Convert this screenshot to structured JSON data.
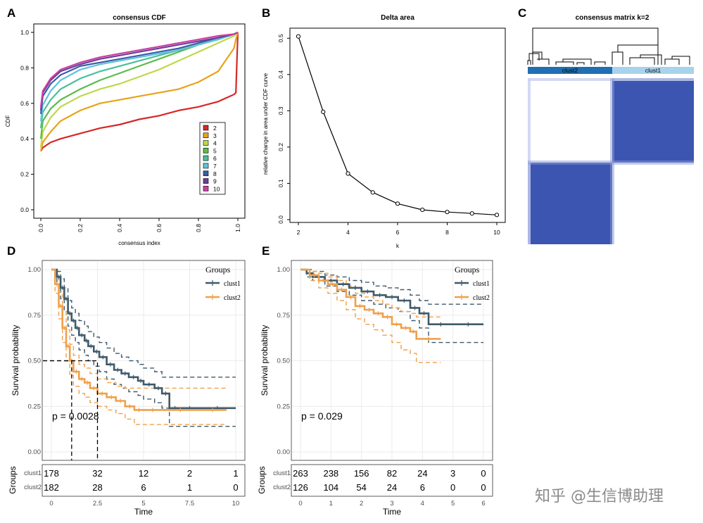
{
  "colors": {
    "cdf": [
      "#d62728",
      "#e8a317",
      "#bcd94a",
      "#5dbb4c",
      "#4bbf9b",
      "#5fc3d9",
      "#3b5ba8",
      "#6a3e9a",
      "#cc3fa0"
    ],
    "clust1": "#3f5a6a",
    "clust2": "#f0a04b",
    "heat": "#3b55b0"
  },
  "watermark": "知乎 @生信博助理",
  "chart_data": [
    {
      "id": "A",
      "panel_label": "A",
      "type": "line",
      "title": "consensus CDF",
      "xlabel": "consensus index",
      "ylabel": "CDF",
      "xlim": [
        0,
        1
      ],
      "ylim": [
        0,
        1
      ],
      "xticks": [
        "0.0",
        "0.2",
        "0.4",
        "0.6",
        "0.8",
        "1.0"
      ],
      "yticks": [
        "0.0",
        "0.2",
        "0.4",
        "0.6",
        "0.8",
        "1.0"
      ],
      "legend_position": "bottom-right",
      "x": [
        0,
        0.01,
        0.05,
        0.1,
        0.2,
        0.3,
        0.4,
        0.5,
        0.6,
        0.7,
        0.8,
        0.9,
        0.98,
        0.99,
        1.0
      ],
      "series": [
        {
          "name": "2",
          "values": [
            0.33,
            0.35,
            0.38,
            0.4,
            0.43,
            0.46,
            0.48,
            0.51,
            0.53,
            0.56,
            0.58,
            0.61,
            0.65,
            0.66,
            1.0
          ]
        },
        {
          "name": "3",
          "values": [
            0.33,
            0.38,
            0.44,
            0.5,
            0.56,
            0.6,
            0.62,
            0.64,
            0.66,
            0.68,
            0.72,
            0.78,
            0.91,
            0.96,
            1.0
          ]
        },
        {
          "name": "4",
          "values": [
            0.35,
            0.44,
            0.52,
            0.58,
            0.64,
            0.68,
            0.71,
            0.75,
            0.79,
            0.84,
            0.89,
            0.94,
            0.98,
            0.99,
            1.0
          ]
        },
        {
          "name": "5",
          "values": [
            0.4,
            0.5,
            0.57,
            0.62,
            0.68,
            0.73,
            0.77,
            0.81,
            0.85,
            0.89,
            0.93,
            0.96,
            0.99,
            0.995,
            1.0
          ]
        },
        {
          "name": "6",
          "values": [
            0.46,
            0.55,
            0.62,
            0.68,
            0.74,
            0.78,
            0.81,
            0.84,
            0.87,
            0.9,
            0.93,
            0.96,
            0.99,
            0.995,
            1.0
          ]
        },
        {
          "name": "7",
          "values": [
            0.5,
            0.59,
            0.67,
            0.73,
            0.79,
            0.82,
            0.84,
            0.86,
            0.88,
            0.9,
            0.93,
            0.96,
            0.99,
            0.995,
            1.0
          ]
        },
        {
          "name": "8",
          "values": [
            0.54,
            0.64,
            0.71,
            0.76,
            0.81,
            0.83,
            0.85,
            0.87,
            0.89,
            0.91,
            0.94,
            0.97,
            0.99,
            0.995,
            1.0
          ]
        },
        {
          "name": "9",
          "values": [
            0.56,
            0.66,
            0.73,
            0.78,
            0.82,
            0.85,
            0.87,
            0.89,
            0.91,
            0.93,
            0.95,
            0.97,
            0.99,
            0.995,
            1.0
          ]
        },
        {
          "name": "10",
          "values": [
            0.58,
            0.67,
            0.74,
            0.79,
            0.83,
            0.86,
            0.88,
            0.9,
            0.92,
            0.94,
            0.96,
            0.98,
            0.99,
            0.995,
            1.0
          ]
        }
      ]
    },
    {
      "id": "B",
      "panel_label": "B",
      "type": "line",
      "title": "Delta area",
      "xlabel": "k",
      "ylabel": "relative change in area under CDF curve",
      "xlim": [
        2,
        10
      ],
      "ylim": [
        0,
        0.52
      ],
      "xticks": [
        "2",
        "4",
        "6",
        "8",
        "10"
      ],
      "yticks": [
        "0.0",
        "0.1",
        "0.2",
        "0.3",
        "0.4",
        "0.5"
      ],
      "x": [
        2,
        3,
        4,
        5,
        6,
        7,
        8,
        9,
        10
      ],
      "values": [
        0.505,
        0.297,
        0.127,
        0.075,
        0.044,
        0.027,
        0.021,
        0.017,
        0.013
      ]
    },
    {
      "id": "C",
      "panel_label": "C",
      "type": "heatmap",
      "title": "consensus matrix k=2",
      "cluster_labels": [
        "clust2",
        "clust1"
      ],
      "matrix": [
        [
          0,
          1
        ],
        [
          1,
          0
        ]
      ]
    },
    {
      "id": "D",
      "panel_label": "D",
      "type": "line",
      "subtype": "kaplan-meier",
      "xlabel": "Time",
      "ylabel": "Survival probability",
      "risk_ylabel": "Groups",
      "legend_title": "Groups",
      "legend_position": "top-right",
      "xlim": [
        0,
        10
      ],
      "ylim": [
        0,
        1
      ],
      "xticks": [
        "0",
        "2.5",
        "5",
        "7.5",
        "10"
      ],
      "yticks": [
        "0.00",
        "0.25",
        "0.50",
        "0.75",
        "1.00"
      ],
      "pvalue": "p = 0.0028",
      "median_lines": [
        1.1,
        2.5
      ],
      "series": [
        {
          "name": "clust1",
          "x": [
            0,
            0.3,
            0.5,
            0.7,
            0.9,
            1.1,
            1.3,
            1.5,
            1.8,
            2.0,
            2.3,
            2.6,
            3.0,
            3.4,
            3.8,
            4.2,
            4.7,
            5.0,
            5.6,
            6.0,
            6.4,
            7.0,
            8.0,
            10.0
          ],
          "values": [
            1.0,
            0.96,
            0.9,
            0.84,
            0.76,
            0.72,
            0.68,
            0.64,
            0.61,
            0.58,
            0.55,
            0.52,
            0.48,
            0.45,
            0.43,
            0.41,
            0.39,
            0.37,
            0.35,
            0.32,
            0.24,
            0.24,
            0.24,
            0.24
          ],
          "upper": [
            1.0,
            0.99,
            0.95,
            0.9,
            0.83,
            0.79,
            0.76,
            0.72,
            0.69,
            0.66,
            0.63,
            0.6,
            0.57,
            0.54,
            0.52,
            0.5,
            0.48,
            0.46,
            0.44,
            0.41,
            0.41,
            0.41,
            0.41,
            0.41
          ],
          "lower": [
            1.0,
            0.92,
            0.84,
            0.77,
            0.69,
            0.64,
            0.6,
            0.56,
            0.53,
            0.5,
            0.47,
            0.44,
            0.4,
            0.37,
            0.35,
            0.33,
            0.31,
            0.29,
            0.27,
            0.24,
            0.14,
            0.14,
            0.14,
            0.14
          ]
        },
        {
          "name": "clust2",
          "x": [
            0,
            0.2,
            0.4,
            0.6,
            0.8,
            1.0,
            1.2,
            1.5,
            1.8,
            2.1,
            2.5,
            3.0,
            3.5,
            4.0,
            4.5,
            5.0,
            6.0,
            8.0,
            9.5
          ],
          "values": [
            1.0,
            0.92,
            0.8,
            0.68,
            0.58,
            0.5,
            0.44,
            0.4,
            0.38,
            0.35,
            0.32,
            0.3,
            0.28,
            0.25,
            0.23,
            0.23,
            0.23,
            0.23,
            0.23
          ],
          "upper": [
            1.0,
            0.97,
            0.88,
            0.77,
            0.67,
            0.59,
            0.53,
            0.48,
            0.46,
            0.43,
            0.4,
            0.38,
            0.36,
            0.35,
            0.35,
            0.35,
            0.35,
            0.35,
            0.35
          ],
          "lower": [
            1.0,
            0.87,
            0.73,
            0.6,
            0.5,
            0.42,
            0.36,
            0.32,
            0.3,
            0.27,
            0.25,
            0.23,
            0.21,
            0.18,
            0.15,
            0.15,
            0.15,
            0.15,
            0.15
          ]
        }
      ],
      "risk_table": {
        "groups": [
          "clust1",
          "clust2"
        ],
        "rows": [
          [
            "178",
            "32",
            "12",
            "2",
            "1"
          ],
          [
            "182",
            "28",
            "6",
            "1",
            "0"
          ]
        ]
      }
    },
    {
      "id": "E",
      "panel_label": "E",
      "type": "line",
      "subtype": "kaplan-meier",
      "xlabel": "Time",
      "ylabel": "Survival probability",
      "risk_ylabel": "Groups",
      "legend_title": "Groups",
      "legend_position": "top-right",
      "xlim": [
        0,
        6
      ],
      "ylim": [
        0,
        1
      ],
      "xticks": [
        "0",
        "1",
        "2",
        "3",
        "4",
        "5",
        "6"
      ],
      "yticks": [
        "0.00",
        "0.25",
        "0.50",
        "0.75",
        "1.00"
      ],
      "pvalue": "p = 0.029",
      "series": [
        {
          "name": "clust1",
          "x": [
            0,
            0.2,
            0.4,
            0.8,
            1.2,
            1.6,
            2.0,
            2.4,
            2.8,
            3.2,
            3.6,
            3.9,
            4.2,
            5.0,
            6.0
          ],
          "values": [
            1.0,
            0.98,
            0.96,
            0.94,
            0.92,
            0.9,
            0.88,
            0.86,
            0.85,
            0.83,
            0.79,
            0.76,
            0.7,
            0.7,
            0.7
          ],
          "upper": [
            1.0,
            1.0,
            0.99,
            0.97,
            0.96,
            0.94,
            0.93,
            0.91,
            0.9,
            0.89,
            0.86,
            0.83,
            0.81,
            0.81,
            0.81
          ],
          "lower": [
            1.0,
            0.96,
            0.94,
            0.91,
            0.88,
            0.86,
            0.83,
            0.81,
            0.79,
            0.77,
            0.72,
            0.68,
            0.6,
            0.6,
            0.6
          ]
        },
        {
          "name": "clust2",
          "x": [
            0,
            0.3,
            0.6,
            0.9,
            1.2,
            1.5,
            1.8,
            2.1,
            2.4,
            2.7,
            3.0,
            3.3,
            3.6,
            3.8,
            4.6
          ],
          "values": [
            1.0,
            0.97,
            0.94,
            0.92,
            0.89,
            0.85,
            0.8,
            0.78,
            0.76,
            0.74,
            0.7,
            0.68,
            0.66,
            0.62,
            0.62
          ],
          "upper": [
            1.0,
            0.99,
            0.98,
            0.96,
            0.94,
            0.91,
            0.87,
            0.85,
            0.83,
            0.81,
            0.79,
            0.77,
            0.76,
            0.74,
            0.74
          ],
          "lower": [
            1.0,
            0.94,
            0.9,
            0.87,
            0.83,
            0.78,
            0.73,
            0.7,
            0.67,
            0.64,
            0.6,
            0.56,
            0.54,
            0.49,
            0.49
          ]
        }
      ],
      "risk_table": {
        "groups": [
          "clust1",
          "clust2"
        ],
        "rows": [
          [
            "263",
            "238",
            "156",
            "82",
            "24",
            "3",
            "0"
          ],
          [
            "126",
            "104",
            "54",
            "24",
            "6",
            "0",
            "0"
          ]
        ]
      }
    }
  ]
}
